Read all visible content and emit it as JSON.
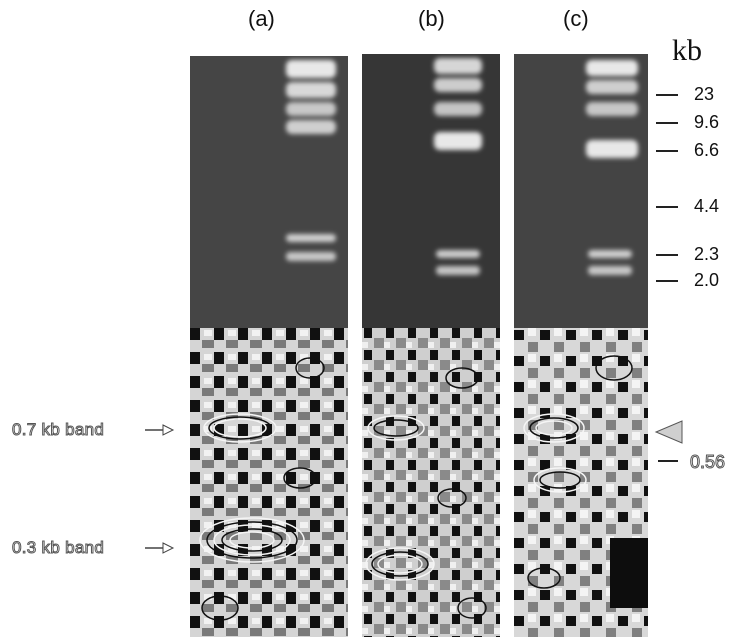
{
  "lanes": [
    {
      "label": "(a)"
    },
    {
      "label": "(b)"
    },
    {
      "label": "(c)"
    }
  ],
  "size_unit": "kb",
  "markers": [
    "23",
    "9.6",
    "6.6",
    "4.4",
    "2.3",
    "2.0"
  ],
  "band_notes": [
    "0.7 kb band",
    "0.3 kb band"
  ],
  "side_marker": "0.56",
  "colors": {
    "gel_background": "#4a4a4a",
    "gel_band": "#e6e6e6",
    "contour_dark": "#101010",
    "contour_light": "#d9d9d9"
  }
}
